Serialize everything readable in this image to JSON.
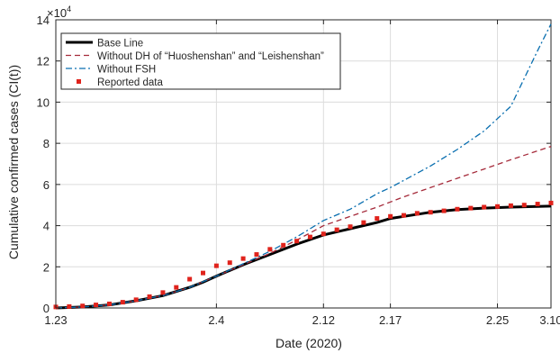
{
  "chart_data": {
    "type": "line",
    "title": "",
    "xlabel": "Date (2020)",
    "ylabel": "Cumulative confirmed cases (CI(t))",
    "y_exponent_label": "×10",
    "y_exponent_power": "4",
    "x_day_range": [
      0,
      37
    ],
    "ylim": [
      0,
      14
    ],
    "x_ticks": [
      {
        "day": 0,
        "label": "1.23"
      },
      {
        "day": 12,
        "label": "2.4"
      },
      {
        "day": 20,
        "label": "2.12"
      },
      {
        "day": 25,
        "label": "2.17"
      },
      {
        "day": 33,
        "label": "2.25"
      },
      {
        "day": 37,
        "label": "3.10"
      }
    ],
    "y_ticks": [
      0,
      2,
      4,
      6,
      8,
      10,
      12,
      14
    ],
    "grid": true,
    "legend_position": "top-left",
    "series": [
      {
        "name": "Base Line",
        "style": "solid",
        "color": "#000000",
        "x": [
          0,
          2,
          4,
          6,
          8,
          10,
          11,
          12,
          14,
          16,
          18,
          20,
          22,
          24,
          25,
          26,
          28,
          30,
          32,
          34,
          37
        ],
        "y": [
          0.0,
          0.05,
          0.15,
          0.35,
          0.6,
          1.0,
          1.25,
          1.55,
          2.1,
          2.6,
          3.1,
          3.55,
          3.85,
          4.15,
          4.35,
          4.45,
          4.65,
          4.78,
          4.85,
          4.9,
          4.95
        ]
      },
      {
        "name": "Without DH of “Huoshenshan” and “Leishenshan”",
        "style": "dashed",
        "color": "#a52a3a",
        "x": [
          0,
          2,
          4,
          6,
          8,
          10,
          12,
          14,
          16,
          18,
          20,
          22,
          24,
          25,
          26,
          28,
          30,
          32,
          34,
          37
        ],
        "y": [
          0.0,
          0.05,
          0.15,
          0.35,
          0.6,
          1.0,
          1.55,
          2.1,
          2.65,
          3.3,
          4.0,
          4.45,
          4.9,
          5.15,
          5.4,
          5.85,
          6.3,
          6.75,
          7.2,
          7.85
        ]
      },
      {
        "name": "Without FSH",
        "style": "dashdot",
        "color": "#0a6fb0",
        "x": [
          0,
          2,
          4,
          6,
          8,
          10,
          12,
          14,
          16,
          18,
          20,
          22,
          24,
          25,
          26,
          28,
          30,
          32,
          34,
          36,
          37
        ],
        "y": [
          0.0,
          0.05,
          0.15,
          0.35,
          0.6,
          1.0,
          1.55,
          2.15,
          2.75,
          3.45,
          4.25,
          4.8,
          5.55,
          5.85,
          6.2,
          6.9,
          7.7,
          8.6,
          9.8,
          12.5,
          13.8
        ]
      },
      {
        "name": "Reported data",
        "style": "markers",
        "color": "#e0231c",
        "x": [
          0,
          1,
          2,
          3,
          4,
          5,
          6,
          7,
          8,
          9,
          10,
          11,
          12,
          13,
          14,
          15,
          16,
          17,
          18,
          19,
          20,
          21,
          22,
          23,
          24,
          25,
          26,
          27,
          28,
          29,
          30,
          31,
          32,
          33,
          34,
          35,
          36,
          37
        ],
        "y": [
          0.05,
          0.07,
          0.1,
          0.15,
          0.2,
          0.28,
          0.4,
          0.55,
          0.75,
          1.0,
          1.4,
          1.7,
          2.05,
          2.2,
          2.4,
          2.6,
          2.85,
          3.05,
          3.25,
          3.45,
          3.6,
          3.8,
          3.95,
          4.15,
          4.35,
          4.45,
          4.5,
          4.6,
          4.65,
          4.72,
          4.8,
          4.85,
          4.9,
          4.93,
          4.97,
          5.0,
          5.05,
          5.1
        ]
      }
    ]
  }
}
